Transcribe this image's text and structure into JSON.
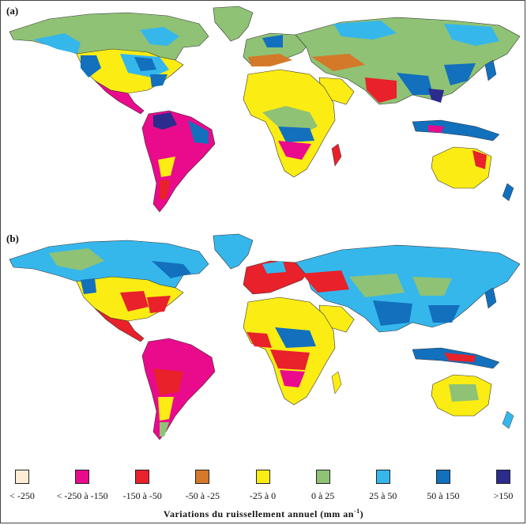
{
  "panels": [
    {
      "label": "(a)"
    },
    {
      "label": "(b)"
    }
  ],
  "legend": {
    "title": "Variations du ruissellement annuel (mm an",
    "title_sup": "-1",
    "title_end": ")",
    "classes": [
      {
        "label": "< -250",
        "color": "#fcecd6"
      },
      {
        "label": "< -250 à -150",
        "color": "#ea0a8c"
      },
      {
        "label": "-150 à -50",
        "color": "#e8212a"
      },
      {
        "label": "-50 à -25",
        "color": "#d4792a"
      },
      {
        "label": "-25 à 0",
        "color": "#fbec13"
      },
      {
        "label": "0 à 25",
        "color": "#8fc274"
      },
      {
        "label": "25 à 50",
        "color": "#35b7ec"
      },
      {
        "label": "50 à 150",
        "color": "#1270bd"
      },
      {
        "label": ">150",
        "color": "#2b2c8d"
      }
    ]
  }
}
